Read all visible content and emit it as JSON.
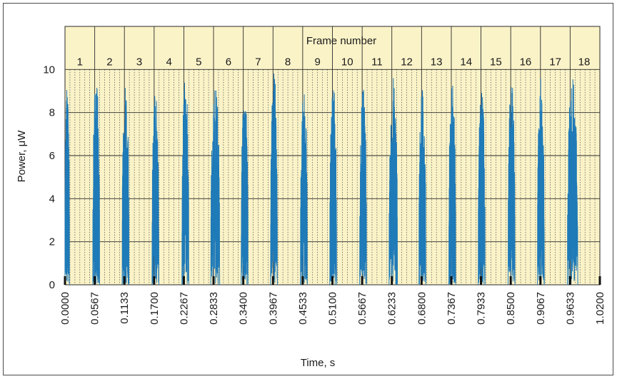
{
  "chart_data": {
    "type": "line",
    "title": "",
    "xlabel": "Time, s",
    "ylabel": "Power, μW",
    "top_axis_label": "Frame number",
    "xlim": [
      0,
      1.02
    ],
    "ylim": [
      0,
      12
    ],
    "grid": true,
    "legend": "none",
    "x_ticks": [
      0.0,
      0.0567,
      0.1133,
      0.17,
      0.2267,
      0.2833,
      0.34,
      0.3967,
      0.4533,
      0.51,
      0.5667,
      0.6233,
      0.68,
      0.7367,
      0.7933,
      0.85,
      0.9067,
      0.9633,
      1.02
    ],
    "x_tick_labels": [
      "0.0000",
      "0.0567",
      "0.1133",
      "0.1700",
      "0.2267",
      "0.2833",
      "0.3400",
      "0.3967",
      "0.4533",
      "0.5100",
      "0.5667",
      "0.6233",
      "0.6800",
      "0.7367",
      "0.7933",
      "0.8500",
      "0.9067",
      "0.9633",
      "1.0200"
    ],
    "y_ticks": [
      0,
      2,
      4,
      6,
      8,
      10
    ],
    "y_tick_labels": [
      "0",
      "2",
      "4",
      "6",
      "8",
      "10"
    ],
    "frame_labels": [
      "1",
      "2",
      "3",
      "4",
      "5",
      "6",
      "7",
      "8",
      "9",
      "10",
      "11",
      "12",
      "13",
      "14",
      "15",
      "16",
      "17",
      "18"
    ],
    "frame_centers": [
      0.0283,
      0.085,
      0.1417,
      0.1983,
      0.255,
      0.3117,
      0.3683,
      0.425,
      0.4817,
      0.5383,
      0.595,
      0.6517,
      0.7083,
      0.765,
      0.8217,
      0.8783,
      0.935,
      0.99
    ],
    "series": [
      {
        "color": "#1f7ab8",
        "bursts": [
          {
            "start": 0.0,
            "end": 0.0085,
            "peak": 9.2
          },
          {
            "start": 0.053,
            "end": 0.066,
            "peak": 9.7
          },
          {
            "start": 0.109,
            "end": 0.122,
            "peak": 9.3
          },
          {
            "start": 0.166,
            "end": 0.179,
            "peak": 9.1
          },
          {
            "start": 0.223,
            "end": 0.236,
            "peak": 9.8
          },
          {
            "start": 0.278,
            "end": 0.295,
            "peak": 9.5
          },
          {
            "start": 0.336,
            "end": 0.349,
            "peak": 9.0
          },
          {
            "start": 0.392,
            "end": 0.405,
            "peak": 9.9
          },
          {
            "start": 0.449,
            "end": 0.462,
            "peak": 9.2
          },
          {
            "start": 0.505,
            "end": 0.518,
            "peak": 9.4
          },
          {
            "start": 0.562,
            "end": 0.575,
            "peak": 9.3
          },
          {
            "start": 0.618,
            "end": 0.634,
            "peak": 9.6
          },
          {
            "start": 0.675,
            "end": 0.688,
            "peak": 9.2
          },
          {
            "start": 0.732,
            "end": 0.745,
            "peak": 9.6
          },
          {
            "start": 0.788,
            "end": 0.801,
            "peak": 9.2
          },
          {
            "start": 0.845,
            "end": 0.858,
            "peak": 9.5
          },
          {
            "start": 0.901,
            "end": 0.914,
            "peak": 9.7
          },
          {
            "start": 0.958,
            "end": 0.978,
            "peak": 9.7
          }
        ]
      }
    ]
  },
  "colors": {
    "plot_background": "#fbf3c8",
    "trace": "#1f7ab8",
    "grid": "#2a2a2a",
    "markers": "#111111"
  }
}
